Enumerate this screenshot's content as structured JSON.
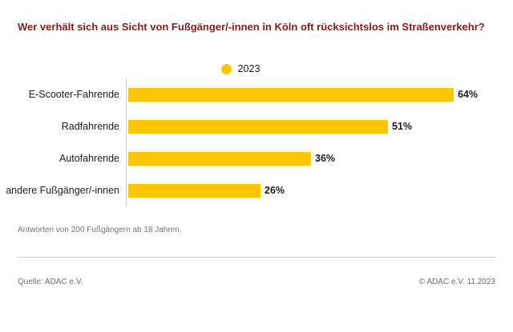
{
  "title": "Wer verhält sich aus Sicht von Fußgänger/-innen in Köln oft rücksichtslos im Straßenverkehr?",
  "legend": {
    "year": "2023",
    "dot_color": "#fbc505"
  },
  "chart_data": {
    "type": "bar",
    "orientation": "horizontal",
    "title": "Wer verhält sich aus Sicht von Fußgänger/-innen in Köln oft rücksichtslos im Straßenverkehr?",
    "categories": [
      "E-Scooter-Fahrende",
      "Radfahrende",
      "Autofahrende",
      "andere Fußgänger/-innen"
    ],
    "values": [
      64,
      51,
      36,
      26
    ],
    "value_labels": [
      "64%",
      "51%",
      "36%",
      "26%"
    ],
    "unit": "%",
    "series_name": "2023",
    "xlabel": "",
    "ylabel": "",
    "xlim": [
      0,
      64
    ],
    "grid": false,
    "legend_position": "top-center",
    "bar_color": "#fbc505"
  },
  "footnote": "Antworten von 200 Fußgängern ab 18 Jahren.",
  "footer": {
    "source": "Quelle: ADAC e.V.",
    "copyright": "© ADAC e.V. 11.2023"
  },
  "colors": {
    "bar": "#fbc505",
    "title_text": "#8a1a12",
    "label_text": "#1d1d1b",
    "muted_text": "#76726f",
    "axis_line": "#c9c7c5",
    "divider_line": "#cfcdcb",
    "background": "#ffffff"
  }
}
